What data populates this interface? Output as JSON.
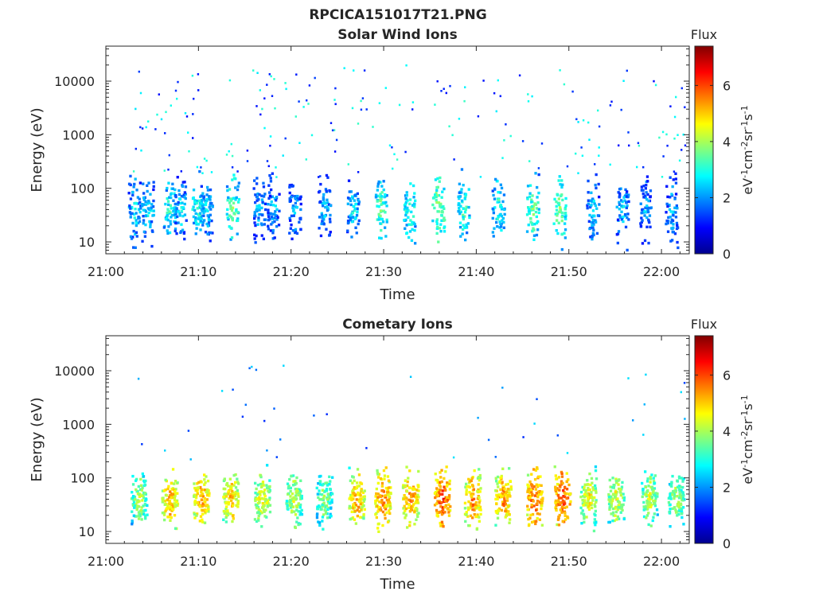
{
  "figure_title": "RPCICA151017T21.PNG",
  "chart_data": [
    {
      "type": "heatmap",
      "title": "Solar Wind Ions",
      "xlabel": "Time",
      "ylabel": "Energy (eV)",
      "x_ticks": [
        "21:00",
        "21:10",
        "21:20",
        "21:30",
        "21:40",
        "21:50",
        "22:00"
      ],
      "x_range_minutes": [
        0,
        63
      ],
      "y_scale": "log",
      "y_ticks": [
        10,
        100,
        1000,
        10000
      ],
      "y_range": [
        6,
        45000
      ],
      "colorbar": {
        "label": "Flux",
        "units": "eV-1cm-2sr-1s-1",
        "range": [
          0,
          7.4
        ],
        "ticks": [
          0,
          2,
          4,
          6
        ],
        "colormap": "jet"
      },
      "grid": false,
      "bursts": [
        {
          "t": 3.0,
          "level": 2.8
        },
        {
          "t": 4.4,
          "level": 2.8
        },
        {
          "t": 6.8,
          "level": 3.2
        },
        {
          "t": 8.0,
          "level": 2.6
        },
        {
          "t": 9.8,
          "level": 3.2
        },
        {
          "t": 10.8,
          "level": 2.8
        },
        {
          "t": 13.6,
          "level": 3.6
        },
        {
          "t": 16.5,
          "level": 2.5
        },
        {
          "t": 18.0,
          "level": 2.5
        },
        {
          "t": 20.3,
          "level": 2.4
        },
        {
          "t": 23.5,
          "level": 2.6
        },
        {
          "t": 26.6,
          "level": 2.8
        },
        {
          "t": 29.6,
          "level": 3.6
        },
        {
          "t": 32.7,
          "level": 3.4
        },
        {
          "t": 35.8,
          "level": 4.0
        },
        {
          "t": 38.5,
          "level": 3.4
        },
        {
          "t": 42.3,
          "level": 3.2
        },
        {
          "t": 46.0,
          "level": 3.6
        },
        {
          "t": 48.9,
          "level": 3.8
        },
        {
          "t": 52.5,
          "level": 2.6
        },
        {
          "t": 55.7,
          "level": 2.6
        },
        {
          "t": 58.2,
          "level": 2.4
        },
        {
          "t": 61.0,
          "level": 2.4
        }
      ]
    },
    {
      "type": "heatmap",
      "title": "Cometary Ions",
      "xlabel": "Time",
      "ylabel": "Energy (eV)",
      "x_ticks": [
        "21:00",
        "21:10",
        "21:20",
        "21:30",
        "21:40",
        "21:50",
        "22:00"
      ],
      "x_range_minutes": [
        0,
        63
      ],
      "y_scale": "log",
      "y_ticks": [
        10,
        100,
        1000,
        10000
      ],
      "y_range": [
        6,
        45000
      ],
      "colorbar": {
        "label": "Flux",
        "units": "eV-1cm-2sr-1s-1",
        "range": [
          0,
          7.4
        ],
        "ticks": [
          0,
          2,
          4,
          6
        ],
        "colormap": "jet"
      },
      "grid": false,
      "bursts": [
        {
          "t": 3.5,
          "level": 4.2
        },
        {
          "t": 6.8,
          "level": 5.4
        },
        {
          "t": 10.2,
          "level": 5.6
        },
        {
          "t": 13.4,
          "level": 5.2
        },
        {
          "t": 16.8,
          "level": 4.8
        },
        {
          "t": 20.2,
          "level": 4.4
        },
        {
          "t": 23.5,
          "level": 4.0
        },
        {
          "t": 27.0,
          "level": 5.4
        },
        {
          "t": 29.8,
          "level": 5.8
        },
        {
          "t": 32.8,
          "level": 5.6
        },
        {
          "t": 36.2,
          "level": 6.2
        },
        {
          "t": 39.5,
          "level": 5.6
        },
        {
          "t": 42.8,
          "level": 5.6
        },
        {
          "t": 46.2,
          "level": 6.0
        },
        {
          "t": 49.2,
          "level": 6.2
        },
        {
          "t": 52.0,
          "level": 4.8
        },
        {
          "t": 55.0,
          "level": 4.6
        },
        {
          "t": 58.6,
          "level": 4.4
        },
        {
          "t": 61.5,
          "level": 4.2
        }
      ]
    }
  ]
}
